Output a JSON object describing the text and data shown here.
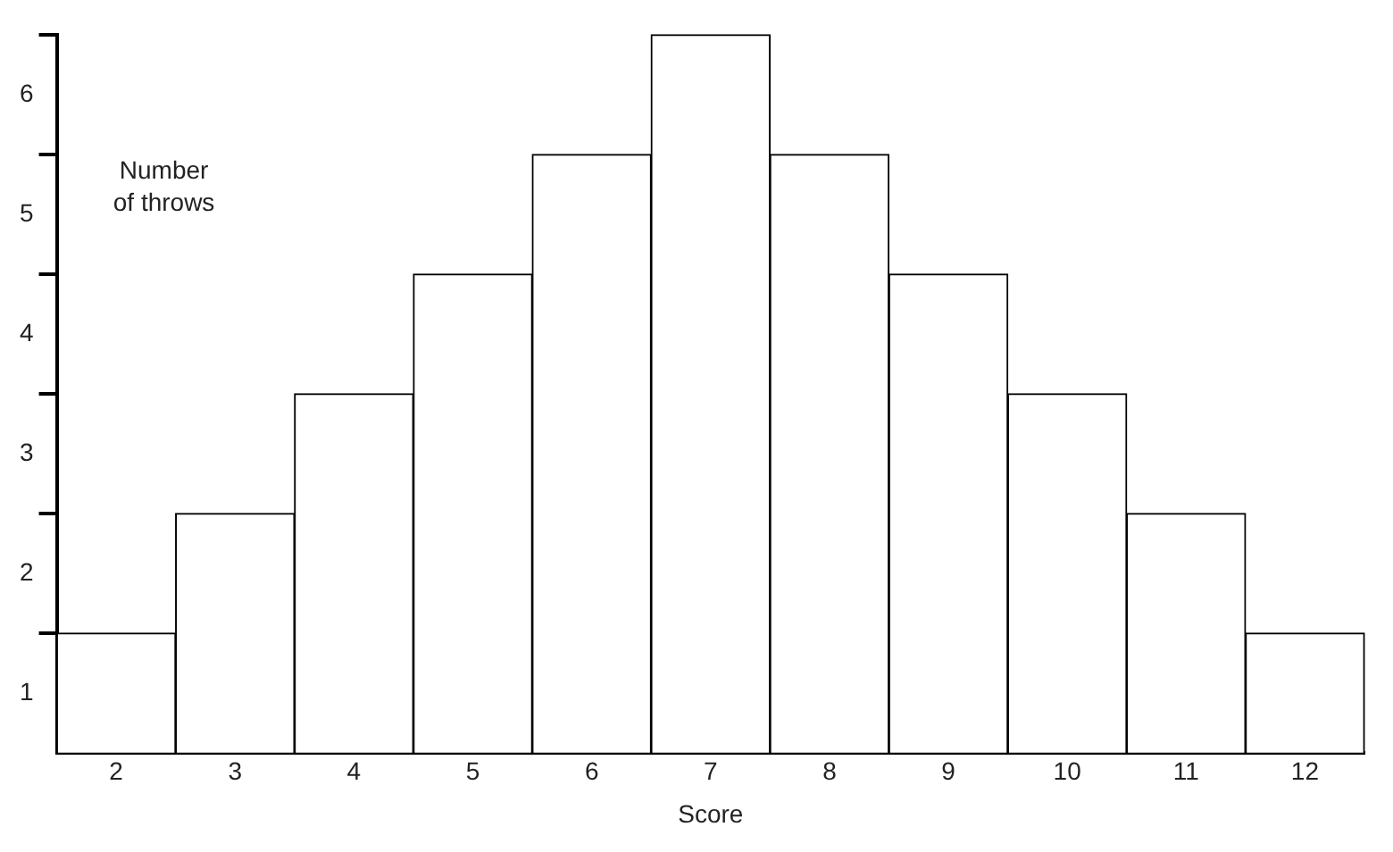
{
  "chart_data": {
    "type": "histogram",
    "xlabel": "Score",
    "ylabel": "Number of throws",
    "bins": [
      1.5,
      2.5,
      3.5,
      4.5,
      5.5,
      6.5,
      7.5,
      8.5,
      9.5,
      10.5,
      11.5,
      12.5
    ],
    "values": [
      1,
      2,
      3,
      4,
      5,
      6,
      5,
      4,
      3,
      2,
      1
    ],
    "color": "#ffffff",
    "xlim": [
      1.5,
      12.5
    ],
    "ylim": [
      0,
      6
    ],
    "xticks": [
      2,
      3,
      4,
      5,
      6,
      7,
      8,
      9,
      10,
      11,
      12
    ],
    "yticks": [
      {
        "value": 0.5,
        "label": "1"
      },
      {
        "value": 1,
        "label": null
      },
      {
        "value": 1.5,
        "label": "2"
      },
      {
        "value": 2,
        "label": null
      },
      {
        "value": 2.5,
        "label": "3"
      },
      {
        "value": 3,
        "label": null
      },
      {
        "value": 3.5,
        "label": "4"
      },
      {
        "value": 4,
        "label": null
      },
      {
        "value": 4.5,
        "label": "5"
      },
      {
        "value": 5,
        "label": null
      },
      {
        "value": 5.5,
        "label": "6"
      },
      {
        "value": 6,
        "label": null
      }
    ],
    "grid": false,
    "legend": false
  }
}
